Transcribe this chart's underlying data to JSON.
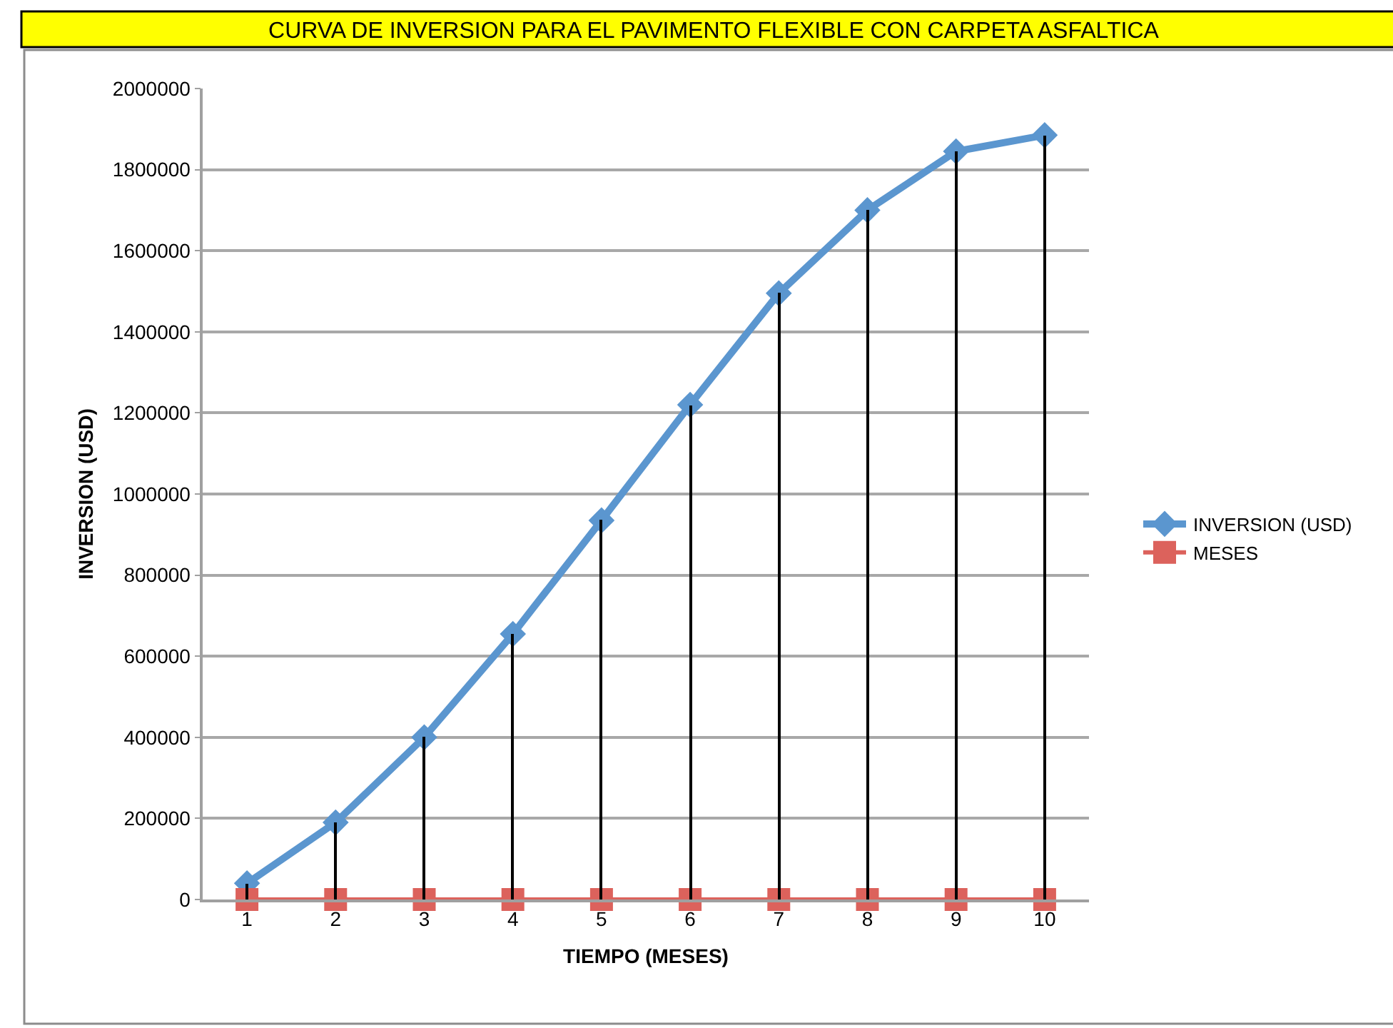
{
  "chart_data": {
    "type": "line",
    "title": "CURVA DE INVERSION PARA EL PAVIMENTO FLEXIBLE CON CARPETA ASFALTICA",
    "xlabel": "TIEMPO (MESES)",
    "ylabel": "INVERSION (USD)",
    "categories": [
      "1",
      "2",
      "3",
      "4",
      "5",
      "6",
      "7",
      "8",
      "9",
      "10"
    ],
    "series": [
      {
        "name": "INVERSION (USD)",
        "color": "#5b96cf",
        "marker": "diamond",
        "values": [
          40000,
          190000,
          400000,
          655000,
          935000,
          1220000,
          1495000,
          1700000,
          1845000,
          1885000
        ]
      },
      {
        "name": "MESES",
        "color": "#dc625c",
        "marker": "square",
        "values": [
          0,
          0,
          0,
          0,
          0,
          0,
          0,
          0,
          0,
          0
        ]
      },
      {
        "type": "bar",
        "color": "#000000",
        "values": [
          40000,
          190000,
          400000,
          655000,
          935000,
          1220000,
          1495000,
          1700000,
          1845000,
          1885000
        ]
      }
    ],
    "ylim": [
      0,
      2000000
    ],
    "yticks": [
      0,
      200000,
      400000,
      600000,
      800000,
      1000000,
      1200000,
      1400000,
      1600000,
      1800000,
      2000000
    ],
    "grid": "y",
    "legend": "right",
    "line_style": "solid"
  }
}
